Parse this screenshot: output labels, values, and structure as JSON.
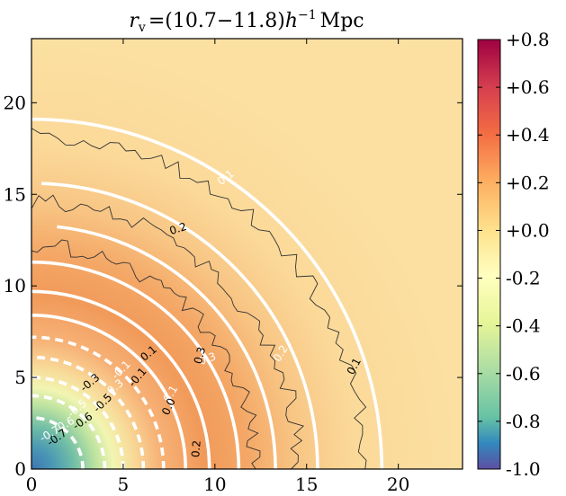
{
  "chart_data": {
    "type": "heatmap",
    "title": "r_v = (10.7−11.8)h⁻¹ Mpc",
    "title_parts": {
      "r": "r",
      "sub": "v",
      "eq": "=",
      "range": "(10.7−11.8)",
      "h": "h",
      "exp": "−1",
      "unit": "Mpc"
    },
    "xlabel": "",
    "ylabel": "",
    "xlim": [
      0,
      23.5
    ],
    "ylim": [
      0,
      23.5
    ],
    "xticks": [
      0,
      5,
      10,
      15,
      20
    ],
    "xtick_labels": [
      "0",
      "5",
      "10",
      "15",
      "20"
    ],
    "yticks": [
      0,
      5,
      10,
      15,
      20
    ],
    "ytick_labels": [
      "0",
      "5",
      "10",
      "15",
      "20"
    ],
    "colorbar": {
      "range": [
        -1.0,
        0.8
      ],
      "ticks": [
        0.8,
        0.6,
        0.4,
        0.2,
        0.0,
        -0.2,
        -0.4,
        -0.6,
        -0.8,
        -1.0
      ],
      "tick_labels": [
        "+0.8",
        "+0.6",
        "+0.4",
        "+0.2",
        "+0.0",
        "-0.2",
        "-0.4",
        "-0.6",
        "-0.8",
        "-1.0"
      ]
    },
    "model_contours": [
      {
        "level": 0.1,
        "radius": 19.1,
        "style": "solid",
        "theta_start": 0,
        "theta_end": 90
      },
      {
        "level": 0.2,
        "radius": 15.6,
        "style": "solid",
        "theta_start": 0,
        "theta_end": 88
      },
      {
        "level": 0.3,
        "radius": 13.3,
        "style": "solid",
        "theta_start": 0,
        "theta_end": 84
      },
      {
        "level": 0.2,
        "radius": 11.3,
        "style": "solid",
        "theta_start": 0,
        "theta_end": 90
      },
      {
        "level": 0.1,
        "radius": 9.7,
        "style": "solid",
        "theta_start": 0,
        "theta_end": 90
      },
      {
        "level": 0.0,
        "radius": 8.4,
        "style": "solid",
        "theta_start": 0,
        "theta_end": 90
      },
      {
        "level": -0.1,
        "radius": 7.2,
        "style": "dashed",
        "theta_start": 0,
        "theta_end": 90
      },
      {
        "level": -0.3,
        "radius": 6.1,
        "style": "dashed",
        "theta_start": 0,
        "theta_end": 90
      },
      {
        "level": -0.5,
        "radius": 5.0,
        "style": "dashed",
        "theta_start": 0,
        "theta_end": 90
      },
      {
        "level": -0.6,
        "radius": 4.0,
        "style": "dashed",
        "theta_start": 0,
        "theta_end": 90
      },
      {
        "level": -0.7,
        "radius": 2.8,
        "style": "dashed",
        "theta_start": 0,
        "theta_end": 90
      }
    ],
    "data_contours": [
      {
        "level": 0.1,
        "radius": 18.2
      },
      {
        "level": 0.2,
        "radius": 14.6
      },
      {
        "level": 0.3,
        "radius": 12.2
      }
    ],
    "annotations": [
      {
        "text": "0.1",
        "x": 17.6,
        "y": 5.6,
        "color": "black",
        "rotation": -62
      },
      {
        "text": "0.2",
        "x": 13.6,
        "y": 6.3,
        "color": "white",
        "rotation": -58
      },
      {
        "text": "0.3",
        "x": 9.6,
        "y": 6.0,
        "color": "white",
        "rotation": -20
      },
      {
        "text": "0.3",
        "x": 9.2,
        "y": 6.2,
        "color": "black",
        "rotation": -75
      },
      {
        "text": "0.1",
        "x": 10.6,
        "y": 15.9,
        "color": "white",
        "rotation": -38
      },
      {
        "text": "0.2",
        "x": 8.0,
        "y": 13.1,
        "color": "black",
        "rotation": -18
      },
      {
        "text": "0.2",
        "x": 9.0,
        "y": 1.1,
        "color": "black",
        "rotation": -85
      },
      {
        "text": "0.1",
        "x": 6.4,
        "y": 6.3,
        "color": "black",
        "rotation": -40
      },
      {
        "text": "0.1",
        "x": 7.6,
        "y": 4.1,
        "color": "white",
        "rotation": -60
      },
      {
        "text": "0.0",
        "x": 7.5,
        "y": 3.4,
        "color": "black",
        "rotation": -65
      },
      {
        "text": "-0.1",
        "x": 5.8,
        "y": 5.0,
        "color": "black",
        "rotation": -50
      },
      {
        "text": "-0.1",
        "x": 4.9,
        "y": 5.4,
        "color": "white",
        "rotation": -45
      },
      {
        "text": "-0.3",
        "x": 3.2,
        "y": 4.7,
        "color": "black",
        "rotation": -40
      },
      {
        "text": "-0.3",
        "x": 4.5,
        "y": 4.4,
        "color": "white",
        "rotation": -40
      },
      {
        "text": "-0.5",
        "x": 3.9,
        "y": 3.6,
        "color": "black",
        "rotation": -45
      },
      {
        "text": "-0.5",
        "x": 2.5,
        "y": 3.3,
        "color": "white",
        "rotation": -40
      },
      {
        "text": "-0.6",
        "x": 2.8,
        "y": 2.6,
        "color": "black",
        "rotation": -35
      },
      {
        "text": "-0.6",
        "x": 1.8,
        "y": 2.4,
        "color": "white",
        "rotation": -30
      },
      {
        "text": "-0.7",
        "x": 1.4,
        "y": 1.7,
        "color": "black",
        "rotation": -35
      },
      {
        "text": "-0.7",
        "x": 1.0,
        "y": 1.9,
        "color": "white",
        "rotation": -30
      }
    ]
  }
}
